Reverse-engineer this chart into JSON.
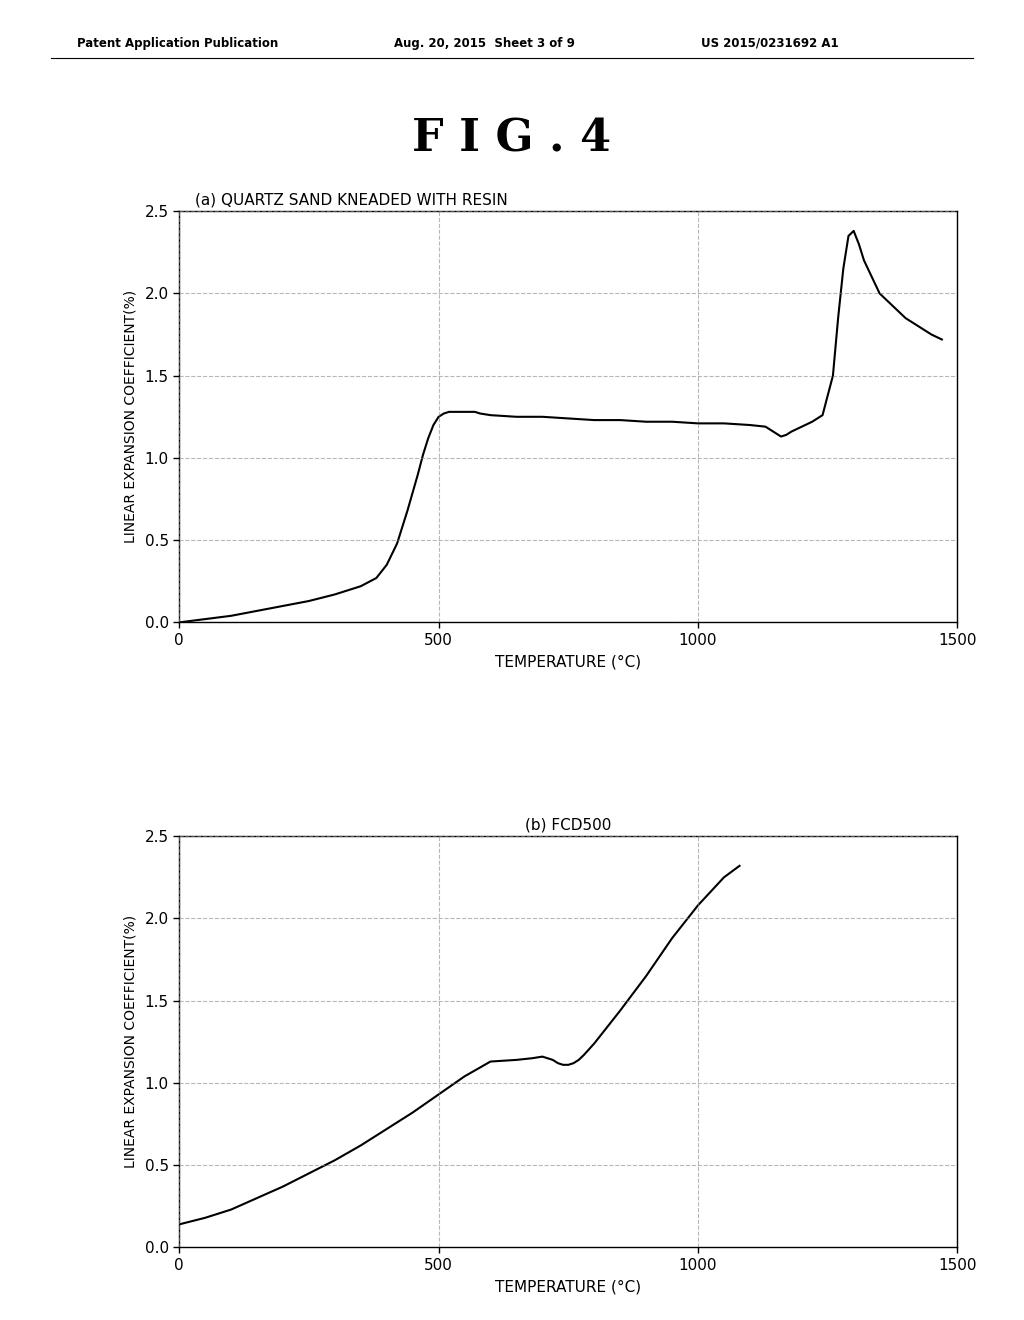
{
  "title": "F I G . 4",
  "header_left": "Patent Application Publication",
  "header_center": "Aug. 20, 2015  Sheet 3 of 9",
  "header_right": "US 2015/0231692 A1",
  "plot_a_title": "(a) QUARTZ SAND KNEADED WITH RESIN",
  "plot_b_title": "(b) FCD500",
  "xlabel": "TEMPERATURE (°C)",
  "ylabel": "LINEAR EXPANSION COEFFICIENT(%)",
  "xlim": [
    0,
    1500
  ],
  "ylim": [
    0.0,
    2.5
  ],
  "xticks": [
    0,
    500,
    1000,
    1500
  ],
  "yticks": [
    0.0,
    0.5,
    1.0,
    1.5,
    2.0,
    2.5
  ],
  "background_color": "#ffffff",
  "line_color": "#000000",
  "grid_color": "#888888",
  "curve_a_x": [
    0,
    50,
    100,
    150,
    200,
    250,
    300,
    350,
    380,
    400,
    420,
    440,
    460,
    470,
    480,
    490,
    500,
    510,
    520,
    540,
    560,
    570,
    580,
    600,
    650,
    700,
    750,
    800,
    850,
    900,
    950,
    1000,
    1050,
    1100,
    1130,
    1150,
    1160,
    1170,
    1180,
    1200,
    1220,
    1240,
    1260,
    1270,
    1280,
    1290,
    1300,
    1310,
    1320,
    1350,
    1400,
    1450,
    1470
  ],
  "curve_a_y": [
    0.0,
    0.02,
    0.04,
    0.07,
    0.1,
    0.13,
    0.17,
    0.22,
    0.27,
    0.35,
    0.48,
    0.68,
    0.9,
    1.02,
    1.12,
    1.2,
    1.25,
    1.27,
    1.28,
    1.28,
    1.28,
    1.28,
    1.27,
    1.26,
    1.25,
    1.25,
    1.24,
    1.23,
    1.23,
    1.22,
    1.22,
    1.21,
    1.21,
    1.2,
    1.19,
    1.15,
    1.13,
    1.14,
    1.16,
    1.19,
    1.22,
    1.26,
    1.5,
    1.85,
    2.15,
    2.35,
    2.38,
    2.3,
    2.2,
    2.0,
    1.85,
    1.75,
    1.72
  ],
  "curve_b_x": [
    0,
    50,
    100,
    150,
    200,
    250,
    300,
    350,
    400,
    450,
    500,
    550,
    600,
    650,
    680,
    700,
    720,
    730,
    740,
    750,
    760,
    770,
    780,
    800,
    850,
    900,
    950,
    1000,
    1050,
    1080
  ],
  "curve_b_y": [
    0.14,
    0.18,
    0.23,
    0.3,
    0.37,
    0.45,
    0.53,
    0.62,
    0.72,
    0.82,
    0.93,
    1.04,
    1.13,
    1.14,
    1.15,
    1.16,
    1.14,
    1.12,
    1.11,
    1.11,
    1.12,
    1.14,
    1.17,
    1.24,
    1.44,
    1.65,
    1.88,
    2.08,
    2.25,
    2.32
  ]
}
